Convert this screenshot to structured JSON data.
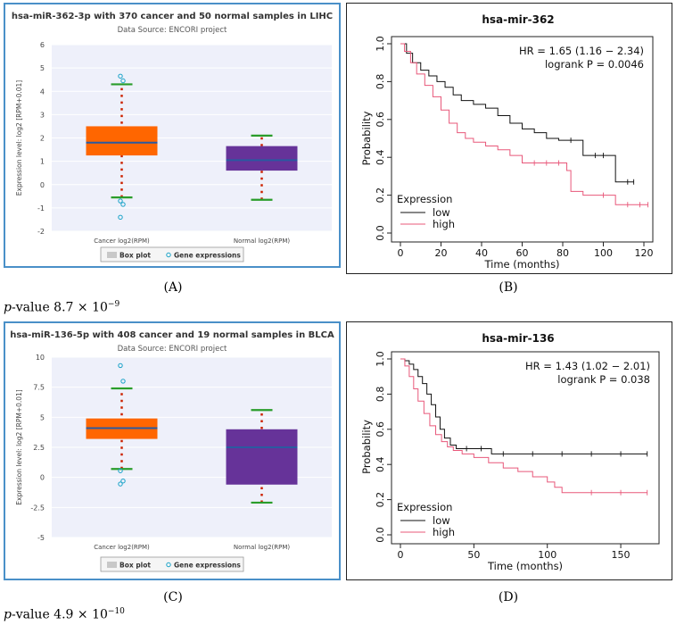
{
  "chart_data": [
    {
      "panel": "A",
      "type": "box",
      "title": "hsa-miR-362-3p with 370 cancer and 50 normal samples in LIHC",
      "subtitle": "Data Source: ENCORI project",
      "ylabel": "Expression level: log2 [RPM+0.01]",
      "ylim": [
        -2,
        6
      ],
      "yticks": [
        -2,
        -1,
        0,
        1,
        2,
        3,
        4,
        5,
        6
      ],
      "groups": [
        {
          "label": "Cancer log2(RPM)",
          "q1": 1.25,
          "median": 1.8,
          "q3": 2.5,
          "whisker_low": -0.55,
          "whisker_high": 4.3,
          "color": "#ff6600",
          "outliers": [
            4.65,
            4.45,
            -0.7,
            -0.85,
            -1.4
          ]
        },
        {
          "label": "Normal log2(RPM)",
          "q1": 0.6,
          "median": 1.05,
          "q3": 1.65,
          "whisker_low": -0.65,
          "whisker_high": 2.1,
          "color": "#663399",
          "outliers": []
        }
      ],
      "legend": [
        "Box plot",
        "Gene expressions"
      ]
    },
    {
      "panel": "B",
      "type": "line",
      "subtype": "kaplan-meier",
      "title": "hsa-mir-362",
      "hr_text": "HR = 1.65 (1.16 − 2.34)",
      "logrank_text": "logrank P = 0.0046",
      "xlabel": "Time (months)",
      "ylabel": "Probability",
      "xlim": [
        0,
        120
      ],
      "ylim": [
        0,
        1
      ],
      "xticks": [
        0,
        20,
        40,
        60,
        80,
        100,
        120
      ],
      "yticks": [
        0.0,
        0.2,
        0.4,
        0.6,
        0.8,
        1.0
      ],
      "legend_title": "Expression",
      "series": [
        {
          "name": "low",
          "color": "#111111",
          "x": [
            0,
            3,
            6,
            10,
            14,
            18,
            22,
            26,
            30,
            36,
            42,
            48,
            54,
            60,
            66,
            72,
            78,
            84,
            90,
            96,
            100,
            106,
            112,
            115
          ],
          "y": [
            1.0,
            0.95,
            0.9,
            0.86,
            0.83,
            0.8,
            0.77,
            0.73,
            0.7,
            0.68,
            0.66,
            0.62,
            0.58,
            0.55,
            0.53,
            0.5,
            0.49,
            0.49,
            0.41,
            0.41,
            0.41,
            0.27,
            0.27,
            0.27
          ]
        },
        {
          "name": "high",
          "color": "#e8587a",
          "x": [
            0,
            2,
            5,
            8,
            12,
            16,
            20,
            24,
            28,
            32,
            36,
            42,
            48,
            54,
            60,
            66,
            72,
            78,
            82,
            84,
            90,
            100,
            106,
            112,
            118,
            122
          ],
          "y": [
            1.0,
            0.96,
            0.9,
            0.84,
            0.78,
            0.72,
            0.65,
            0.58,
            0.53,
            0.5,
            0.48,
            0.46,
            0.44,
            0.41,
            0.37,
            0.37,
            0.37,
            0.37,
            0.33,
            0.22,
            0.2,
            0.2,
            0.15,
            0.15,
            0.15,
            0.15
          ]
        }
      ]
    },
    {
      "panel": "C",
      "type": "box",
      "title": "hsa-miR-136-5p with 408 cancer and 19 normal samples in BLCA",
      "subtitle": "Data Source: ENCORI project",
      "ylabel": "Expression level: log2 [RPM+0.01]",
      "ylim": [
        -5,
        10
      ],
      "yticks": [
        -5,
        -2.5,
        0,
        2.5,
        5,
        7.5,
        10
      ],
      "groups": [
        {
          "label": "Cancer log2(RPM)",
          "q1": 3.2,
          "median": 4.1,
          "q3": 4.9,
          "whisker_low": 0.7,
          "whisker_high": 7.4,
          "color": "#ff6600",
          "outliers": [
            9.3,
            8.0,
            0.55,
            -0.3,
            -0.55
          ]
        },
        {
          "label": "Normal log2(RPM)",
          "q1": -0.6,
          "median": 2.5,
          "q3": 4.0,
          "whisker_low": -2.1,
          "whisker_high": 5.6,
          "color": "#663399",
          "outliers": []
        }
      ],
      "legend": [
        "Box plot",
        "Gene expressions"
      ]
    },
    {
      "panel": "D",
      "type": "line",
      "subtype": "kaplan-meier",
      "title": "hsa-mir-136",
      "hr_text": "HR = 1.43 (1.02 − 2.01)",
      "logrank_text": "logrank P = 0.038",
      "xlabel": "Time (months)",
      "ylabel": "Probability",
      "xlim": [
        0,
        170
      ],
      "ylim": [
        0,
        1
      ],
      "xticks": [
        0,
        50,
        100,
        150
      ],
      "yticks": [
        0.0,
        0.2,
        0.4,
        0.6,
        0.8,
        1.0
      ],
      "legend_title": "Expression",
      "series": [
        {
          "name": "low",
          "color": "#111111",
          "x": [
            0,
            3,
            6,
            9,
            12,
            15,
            18,
            21,
            24,
            27,
            30,
            34,
            38,
            45,
            55,
            62,
            70,
            90,
            110,
            130,
            150,
            168
          ],
          "y": [
            1.0,
            0.99,
            0.97,
            0.94,
            0.9,
            0.86,
            0.8,
            0.74,
            0.67,
            0.6,
            0.55,
            0.51,
            0.49,
            0.49,
            0.49,
            0.46,
            0.46,
            0.46,
            0.46,
            0.46,
            0.46,
            0.46
          ]
        },
        {
          "name": "high",
          "color": "#e8587a",
          "x": [
            0,
            3,
            6,
            9,
            12,
            16,
            20,
            24,
            28,
            32,
            36,
            42,
            50,
            60,
            70,
            80,
            90,
            100,
            105,
            110,
            130,
            150,
            168
          ],
          "y": [
            1.0,
            0.96,
            0.9,
            0.83,
            0.76,
            0.69,
            0.62,
            0.57,
            0.53,
            0.5,
            0.48,
            0.46,
            0.44,
            0.41,
            0.38,
            0.36,
            0.33,
            0.3,
            0.27,
            0.24,
            0.24,
            0.24,
            0.24
          ]
        }
      ]
    }
  ],
  "captions": [
    "(A)",
    "(B)",
    "(C)",
    "(D)"
  ],
  "pvalues": [
    {
      "prefix": "p",
      "text": "-value 8.7 × 10",
      "exp": "−9"
    },
    {
      "prefix": "p",
      "text": "-value 4.9 × 10",
      "exp": "−10"
    }
  ]
}
